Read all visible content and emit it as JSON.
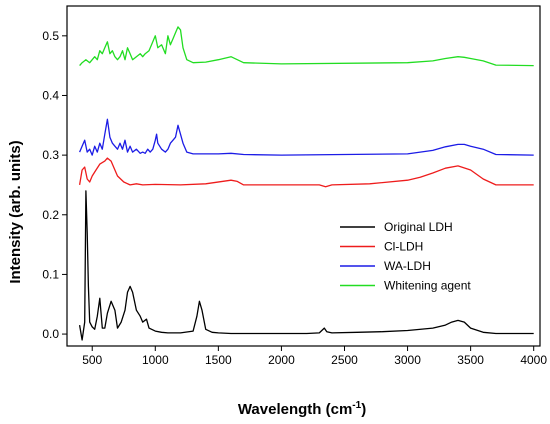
{
  "chart_data": {
    "type": "line",
    "xlabel": "Wavelength (cm",
    "xlabel_sup": "-1",
    "xlabel_close": ")",
    "ylabel": "Intensity (arb. units)",
    "xlim": [
      300,
      4050
    ],
    "ylim": [
      -0.02,
      0.55
    ],
    "xticks": [
      500,
      1000,
      1500,
      2000,
      2500,
      3000,
      3500,
      4000
    ],
    "yticks": [
      0.0,
      0.1,
      0.2,
      0.3,
      0.4,
      0.5
    ],
    "ytick_labels": [
      "0.0",
      "0.1",
      "0.2",
      "0.3",
      "0.4",
      "0.5"
    ],
    "grid": false,
    "legend_position": "center-right",
    "series": [
      {
        "name": "Original LDH",
        "color": "#000000",
        "x": [
          400,
          420,
          440,
          450,
          460,
          470,
          480,
          500,
          520,
          540,
          560,
          580,
          600,
          620,
          650,
          680,
          700,
          730,
          760,
          780,
          800,
          820,
          850,
          880,
          900,
          930,
          950,
          1000,
          1050,
          1100,
          1200,
          1300,
          1330,
          1350,
          1370,
          1400,
          1450,
          1500,
          1600,
          1800,
          2000,
          2200,
          2300,
          2340,
          2360,
          2400,
          2600,
          2800,
          3000,
          3200,
          3300,
          3350,
          3400,
          3450,
          3500,
          3600,
          3700,
          4000
        ],
        "y": [
          0.015,
          -0.01,
          0.02,
          0.24,
          0.17,
          0.08,
          0.02,
          0.012,
          0.008,
          0.03,
          0.06,
          0.01,
          0.01,
          0.035,
          0.055,
          0.04,
          0.01,
          0.02,
          0.04,
          0.07,
          0.08,
          0.07,
          0.04,
          0.03,
          0.02,
          0.025,
          0.01,
          0.005,
          0.003,
          0.002,
          0.002,
          0.005,
          0.03,
          0.055,
          0.04,
          0.008,
          0.003,
          0.002,
          0.001,
          0.001,
          0.001,
          0.001,
          0.002,
          0.01,
          0.004,
          0.002,
          0.003,
          0.004,
          0.006,
          0.01,
          0.015,
          0.02,
          0.023,
          0.02,
          0.01,
          0.003,
          0.001,
          0.001
        ]
      },
      {
        "name": "Cl-LDH",
        "color": "#ee1c1c",
        "x": [
          400,
          420,
          440,
          460,
          480,
          500,
          530,
          560,
          600,
          620,
          650,
          680,
          700,
          750,
          800,
          850,
          900,
          1000,
          1200,
          1400,
          1600,
          1650,
          1700,
          2000,
          2300,
          2350,
          2400,
          2700,
          3000,
          3100,
          3200,
          3300,
          3400,
          3500,
          3600,
          3700,
          4000
        ],
        "y": [
          0.25,
          0.275,
          0.28,
          0.26,
          0.255,
          0.265,
          0.275,
          0.285,
          0.29,
          0.295,
          0.29,
          0.275,
          0.265,
          0.255,
          0.25,
          0.252,
          0.25,
          0.251,
          0.25,
          0.252,
          0.258,
          0.256,
          0.25,
          0.25,
          0.25,
          0.247,
          0.25,
          0.252,
          0.258,
          0.263,
          0.27,
          0.278,
          0.282,
          0.275,
          0.26,
          0.25,
          0.25
        ]
      },
      {
        "name": "WA-LDH",
        "color": "#1c1ce6",
        "x": [
          400,
          420,
          440,
          460,
          480,
          500,
          520,
          540,
          560,
          580,
          600,
          620,
          640,
          660,
          680,
          700,
          720,
          740,
          760,
          780,
          800,
          820,
          850,
          880,
          900,
          920,
          940,
          960,
          980,
          1000,
          1010,
          1020,
          1050,
          1080,
          1100,
          1120,
          1140,
          1160,
          1180,
          1200,
          1220,
          1250,
          1300,
          1400,
          1500,
          1600,
          1700,
          2000,
          3000,
          3200,
          3300,
          3400,
          3450,
          3500,
          3600,
          3700,
          4000
        ],
        "y": [
          0.305,
          0.315,
          0.325,
          0.305,
          0.31,
          0.3,
          0.315,
          0.305,
          0.32,
          0.31,
          0.335,
          0.36,
          0.33,
          0.32,
          0.315,
          0.31,
          0.32,
          0.31,
          0.325,
          0.305,
          0.315,
          0.305,
          0.31,
          0.303,
          0.305,
          0.303,
          0.31,
          0.305,
          0.31,
          0.325,
          0.335,
          0.32,
          0.31,
          0.305,
          0.31,
          0.32,
          0.325,
          0.33,
          0.35,
          0.335,
          0.32,
          0.305,
          0.302,
          0.302,
          0.302,
          0.303,
          0.301,
          0.3,
          0.302,
          0.308,
          0.314,
          0.318,
          0.318,
          0.315,
          0.31,
          0.301,
          0.3
        ]
      },
      {
        "name": "Whitening agent",
        "color": "#22dd22",
        "x": [
          400,
          420,
          450,
          480,
          500,
          520,
          540,
          560,
          580,
          600,
          620,
          640,
          660,
          680,
          700,
          720,
          740,
          760,
          780,
          800,
          820,
          850,
          880,
          900,
          920,
          950,
          980,
          1000,
          1020,
          1050,
          1080,
          1100,
          1120,
          1140,
          1160,
          1180,
          1200,
          1220,
          1250,
          1300,
          1400,
          1500,
          1600,
          1650,
          1700,
          2000,
          3000,
          3200,
          3300,
          3400,
          3450,
          3500,
          3600,
          3700,
          4000
        ],
        "y": [
          0.45,
          0.455,
          0.46,
          0.455,
          0.46,
          0.465,
          0.46,
          0.475,
          0.47,
          0.48,
          0.49,
          0.47,
          0.475,
          0.465,
          0.46,
          0.465,
          0.475,
          0.46,
          0.48,
          0.47,
          0.46,
          0.465,
          0.47,
          0.465,
          0.47,
          0.475,
          0.49,
          0.5,
          0.48,
          0.485,
          0.47,
          0.5,
          0.485,
          0.495,
          0.505,
          0.515,
          0.51,
          0.48,
          0.46,
          0.455,
          0.456,
          0.46,
          0.465,
          0.46,
          0.455,
          0.453,
          0.455,
          0.458,
          0.462,
          0.465,
          0.464,
          0.462,
          0.458,
          0.451,
          0.45
        ]
      }
    ]
  }
}
